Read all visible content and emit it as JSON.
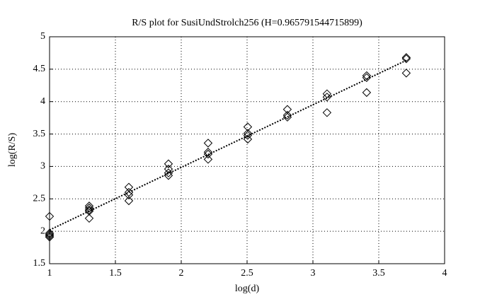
{
  "chart_data": {
    "type": "scatter",
    "title": "R/S plot for SusiUndStrolch256 (H=0.965791544715899)",
    "xlabel": "log(d)",
    "ylabel": "log(R/S)",
    "xlim": [
      1,
      4
    ],
    "ylim": [
      1.5,
      5
    ],
    "xticks": [
      1,
      1.5,
      2,
      2.5,
      3,
      3.5,
      4
    ],
    "yticks": [
      1.5,
      2,
      2.5,
      3,
      3.5,
      4,
      4.5,
      5
    ],
    "grid": true,
    "series": [
      {
        "type": "scatter",
        "marker": "diamond",
        "color": "#000000",
        "x": [
          1,
          1,
          1,
          1,
          1,
          1.301,
          1.301,
          1.301,
          1.301,
          1.301,
          1.602,
          1.602,
          1.602,
          1.602,
          1.903,
          1.903,
          1.903,
          1.903,
          2.204,
          2.204,
          2.204,
          2.204,
          2.505,
          2.505,
          2.505,
          2.505,
          2.806,
          2.806,
          2.806,
          3.107,
          3.107,
          3.107,
          3.408,
          3.408,
          3.408,
          3.709,
          3.709,
          3.709
        ],
        "values": [
          2.23,
          1.97,
          1.95,
          1.93,
          1.91,
          2.39,
          2.36,
          2.33,
          2.31,
          2.2,
          2.68,
          2.6,
          2.56,
          2.47,
          3.04,
          2.96,
          2.9,
          2.86,
          3.36,
          3.22,
          3.19,
          3.11,
          3.61,
          3.51,
          3.48,
          3.42,
          3.88,
          3.79,
          3.76,
          4.12,
          4.07,
          3.83,
          4.4,
          4.37,
          4.14,
          4.68,
          4.66,
          4.44
        ]
      },
      {
        "type": "line",
        "linestyle": "dotted",
        "color": "#000000",
        "x": [
          1,
          3.709
        ],
        "values": [
          2.02,
          4.636
        ]
      }
    ]
  }
}
